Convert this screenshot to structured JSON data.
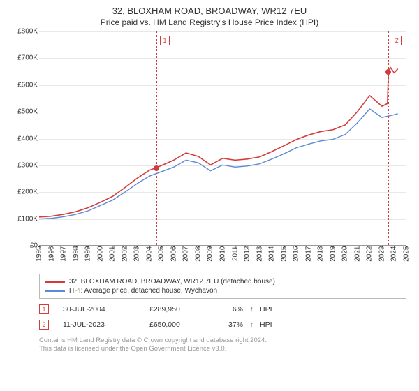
{
  "title": "32, BLOXHAM ROAD, BROADWAY, WR12 7EU",
  "subtitle": "Price paid vs. HM Land Registry's House Price Index (HPI)",
  "chart": {
    "type": "line",
    "ylim": [
      0,
      800000
    ],
    "ytick_step": 100000,
    "y_ticks": [
      "£0",
      "£100K",
      "£200K",
      "£300K",
      "£400K",
      "£500K",
      "£600K",
      "£700K",
      "£800K"
    ],
    "xlim": [
      1995,
      2025
    ],
    "x_ticks": [
      "1995",
      "1996",
      "1997",
      "1998",
      "1999",
      "2000",
      "2001",
      "2002",
      "2003",
      "2004",
      "2005",
      "2006",
      "2007",
      "2008",
      "2009",
      "2010",
      "2011",
      "2012",
      "2013",
      "2014",
      "2015",
      "2016",
      "2017",
      "2018",
      "2019",
      "2020",
      "2021",
      "2022",
      "2023",
      "2024",
      "2025"
    ],
    "background_color": "#ffffff",
    "grid_color": "#e8e8e8",
    "series": [
      {
        "name": "property",
        "label": "32, BLOXHAM ROAD, BROADWAY, WR12 7EU (detached house)",
        "color": "#d43c3c",
        "width": 1.6,
        "points": [
          [
            1995,
            105000
          ],
          [
            1996,
            108000
          ],
          [
            1997,
            115000
          ],
          [
            1998,
            125000
          ],
          [
            1999,
            140000
          ],
          [
            2000,
            160000
          ],
          [
            2001,
            182000
          ],
          [
            2002,
            215000
          ],
          [
            2003,
            250000
          ],
          [
            2004,
            280000
          ],
          [
            2004.58,
            289950
          ],
          [
            2005,
            298000
          ],
          [
            2006,
            318000
          ],
          [
            2007,
            345000
          ],
          [
            2008,
            332000
          ],
          [
            2009,
            300000
          ],
          [
            2010,
            325000
          ],
          [
            2011,
            318000
          ],
          [
            2012,
            322000
          ],
          [
            2013,
            330000
          ],
          [
            2014,
            350000
          ],
          [
            2015,
            372000
          ],
          [
            2016,
            395000
          ],
          [
            2017,
            412000
          ],
          [
            2018,
            425000
          ],
          [
            2019,
            432000
          ],
          [
            2020,
            450000
          ],
          [
            2021,
            500000
          ],
          [
            2022,
            560000
          ],
          [
            2023,
            520000
          ],
          [
            2023.45,
            530000
          ],
          [
            2023.53,
            650000
          ],
          [
            2023.7,
            665000
          ],
          [
            2024,
            645000
          ],
          [
            2024.3,
            660000
          ]
        ]
      },
      {
        "name": "hpi",
        "label": "HPI: Average price, detached house, Wychavon",
        "color": "#5b8bd4",
        "width": 1.4,
        "points": [
          [
            1995,
            98000
          ],
          [
            1996,
            100000
          ],
          [
            1997,
            106000
          ],
          [
            1998,
            115000
          ],
          [
            1999,
            128000
          ],
          [
            2000,
            148000
          ],
          [
            2001,
            168000
          ],
          [
            2002,
            198000
          ],
          [
            2003,
            230000
          ],
          [
            2004,
            258000
          ],
          [
            2005,
            275000
          ],
          [
            2006,
            292000
          ],
          [
            2007,
            318000
          ],
          [
            2008,
            308000
          ],
          [
            2009,
            278000
          ],
          [
            2010,
            300000
          ],
          [
            2011,
            292000
          ],
          [
            2012,
            296000
          ],
          [
            2013,
            304000
          ],
          [
            2014,
            322000
          ],
          [
            2015,
            342000
          ],
          [
            2016,
            364000
          ],
          [
            2017,
            378000
          ],
          [
            2018,
            390000
          ],
          [
            2019,
            396000
          ],
          [
            2020,
            414000
          ],
          [
            2021,
            458000
          ],
          [
            2022,
            510000
          ],
          [
            2023,
            478000
          ],
          [
            2024,
            488000
          ],
          [
            2024.3,
            492000
          ]
        ]
      }
    ],
    "markers": [
      {
        "id": "1",
        "x": 2004.58,
        "y": 289950,
        "color": "#d43c3c",
        "box_side": "right"
      },
      {
        "id": "2",
        "x": 2023.53,
        "y": 650000,
        "color": "#d43c3c",
        "box_side": "right"
      }
    ]
  },
  "legend": {
    "row1_swatch": "#d43c3c",
    "row1_label": "32, BLOXHAM ROAD, BROADWAY, WR12 7EU (detached house)",
    "row2_swatch": "#5b8bd4",
    "row2_label": "HPI: Average price, detached house, Wychavon"
  },
  "sales": [
    {
      "id": "1",
      "date": "30-JUL-2004",
      "price": "£289,950",
      "rel": "6%",
      "arrow": "↑",
      "hpi": "HPI"
    },
    {
      "id": "2",
      "date": "11-JUL-2023",
      "price": "£650,000",
      "rel": "37%",
      "arrow": "↑",
      "hpi": "HPI"
    }
  ],
  "footnote_line1": "Contains HM Land Registry data © Crown copyright and database right 2024.",
  "footnote_line2": "This data is licensed under the Open Government Licence v3.0."
}
